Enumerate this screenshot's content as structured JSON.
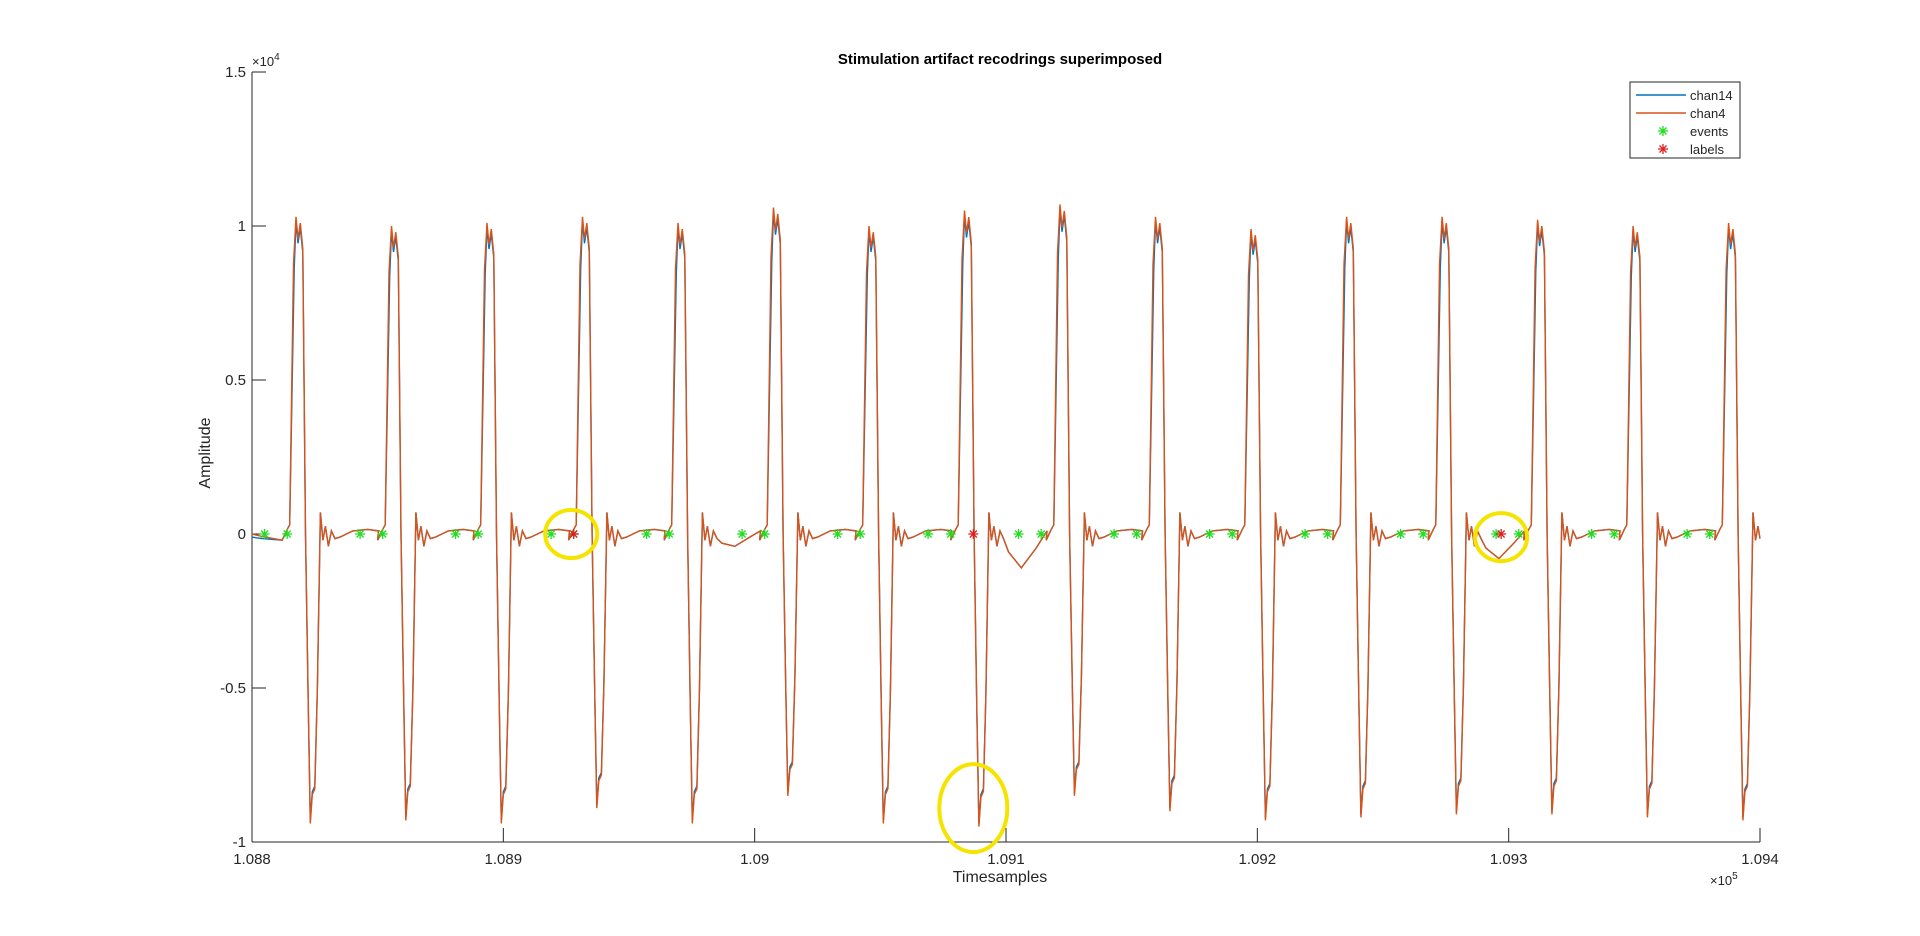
{
  "chart_data": {
    "type": "line",
    "title": "Stimulation artifact recodrings superimposed",
    "xlabel": "Timesamples",
    "ylabel": "Amplitude",
    "x_exponent": "×10",
    "x_exponent_power": "5",
    "y_exponent": "×10",
    "y_exponent_power": "4",
    "xlim": [
      108800,
      109400
    ],
    "ylim": [
      -10000,
      15000
    ],
    "x_ticks": [
      108800,
      108900,
      109000,
      109100,
      109200,
      109300,
      109400
    ],
    "x_tick_labels": [
      "1.088",
      "1.089",
      "1.09",
      "1.091",
      "1.092",
      "1.093",
      "1.094"
    ],
    "y_ticks": [
      -10000,
      -5000,
      0,
      5000,
      10000,
      15000
    ],
    "y_tick_labels": [
      "-1",
      "-0.5",
      "0",
      "0.5",
      "1",
      "1.5"
    ],
    "grid": false,
    "legend_position": "top-right",
    "series": [
      {
        "name": "chan14",
        "color": "#0072BD"
      },
      {
        "name": "chan4",
        "color": "#D95319"
      }
    ],
    "pulse_starts": [
      108815,
      108853,
      108891,
      108929,
      108967,
      109005,
      109043,
      109081,
      109119,
      109157,
      109195,
      109233,
      109271,
      109309,
      109347,
      109385
    ],
    "pulse_peaks": [
      10300,
      10000,
      10100,
      10300,
      10100,
      10600,
      10000,
      10500,
      10700,
      10300,
      9900,
      10300,
      10300,
      10200,
      10000,
      10100
    ],
    "pulse_troughs": [
      -9400,
      -9300,
      -9400,
      -8900,
      -9400,
      -8500,
      -9400,
      -9500,
      -8500,
      -9000,
      -9300,
      -9200,
      -9100,
      -9100,
      -9200,
      -9300
    ],
    "events": {
      "name": "events",
      "color": "#22DD22",
      "x": [
        108805,
        108814,
        108843,
        108852,
        108881,
        108890,
        108919,
        108928,
        108957,
        108966,
        108995,
        109004,
        109033,
        109042,
        109069,
        109078,
        109105,
        109114,
        109143,
        109152,
        109181,
        109190,
        109219,
        109228,
        109257,
        109266,
        109295,
        109304,
        109333,
        109342,
        109371,
        109380
      ],
      "y": 0
    },
    "labels": {
      "name": "labels",
      "color": "#DD2222",
      "x": [
        108928,
        109087,
        109297
      ],
      "y": 0
    },
    "annotations": [
      {
        "shape": "circle",
        "color": "#F5E400",
        "x": 108927,
        "y": 0
      },
      {
        "shape": "circle",
        "color": "#F5E400",
        "x": 109087,
        "y": -8900
      },
      {
        "shape": "circle",
        "color": "#F5E400",
        "x": 109297,
        "y": -100
      }
    ]
  }
}
